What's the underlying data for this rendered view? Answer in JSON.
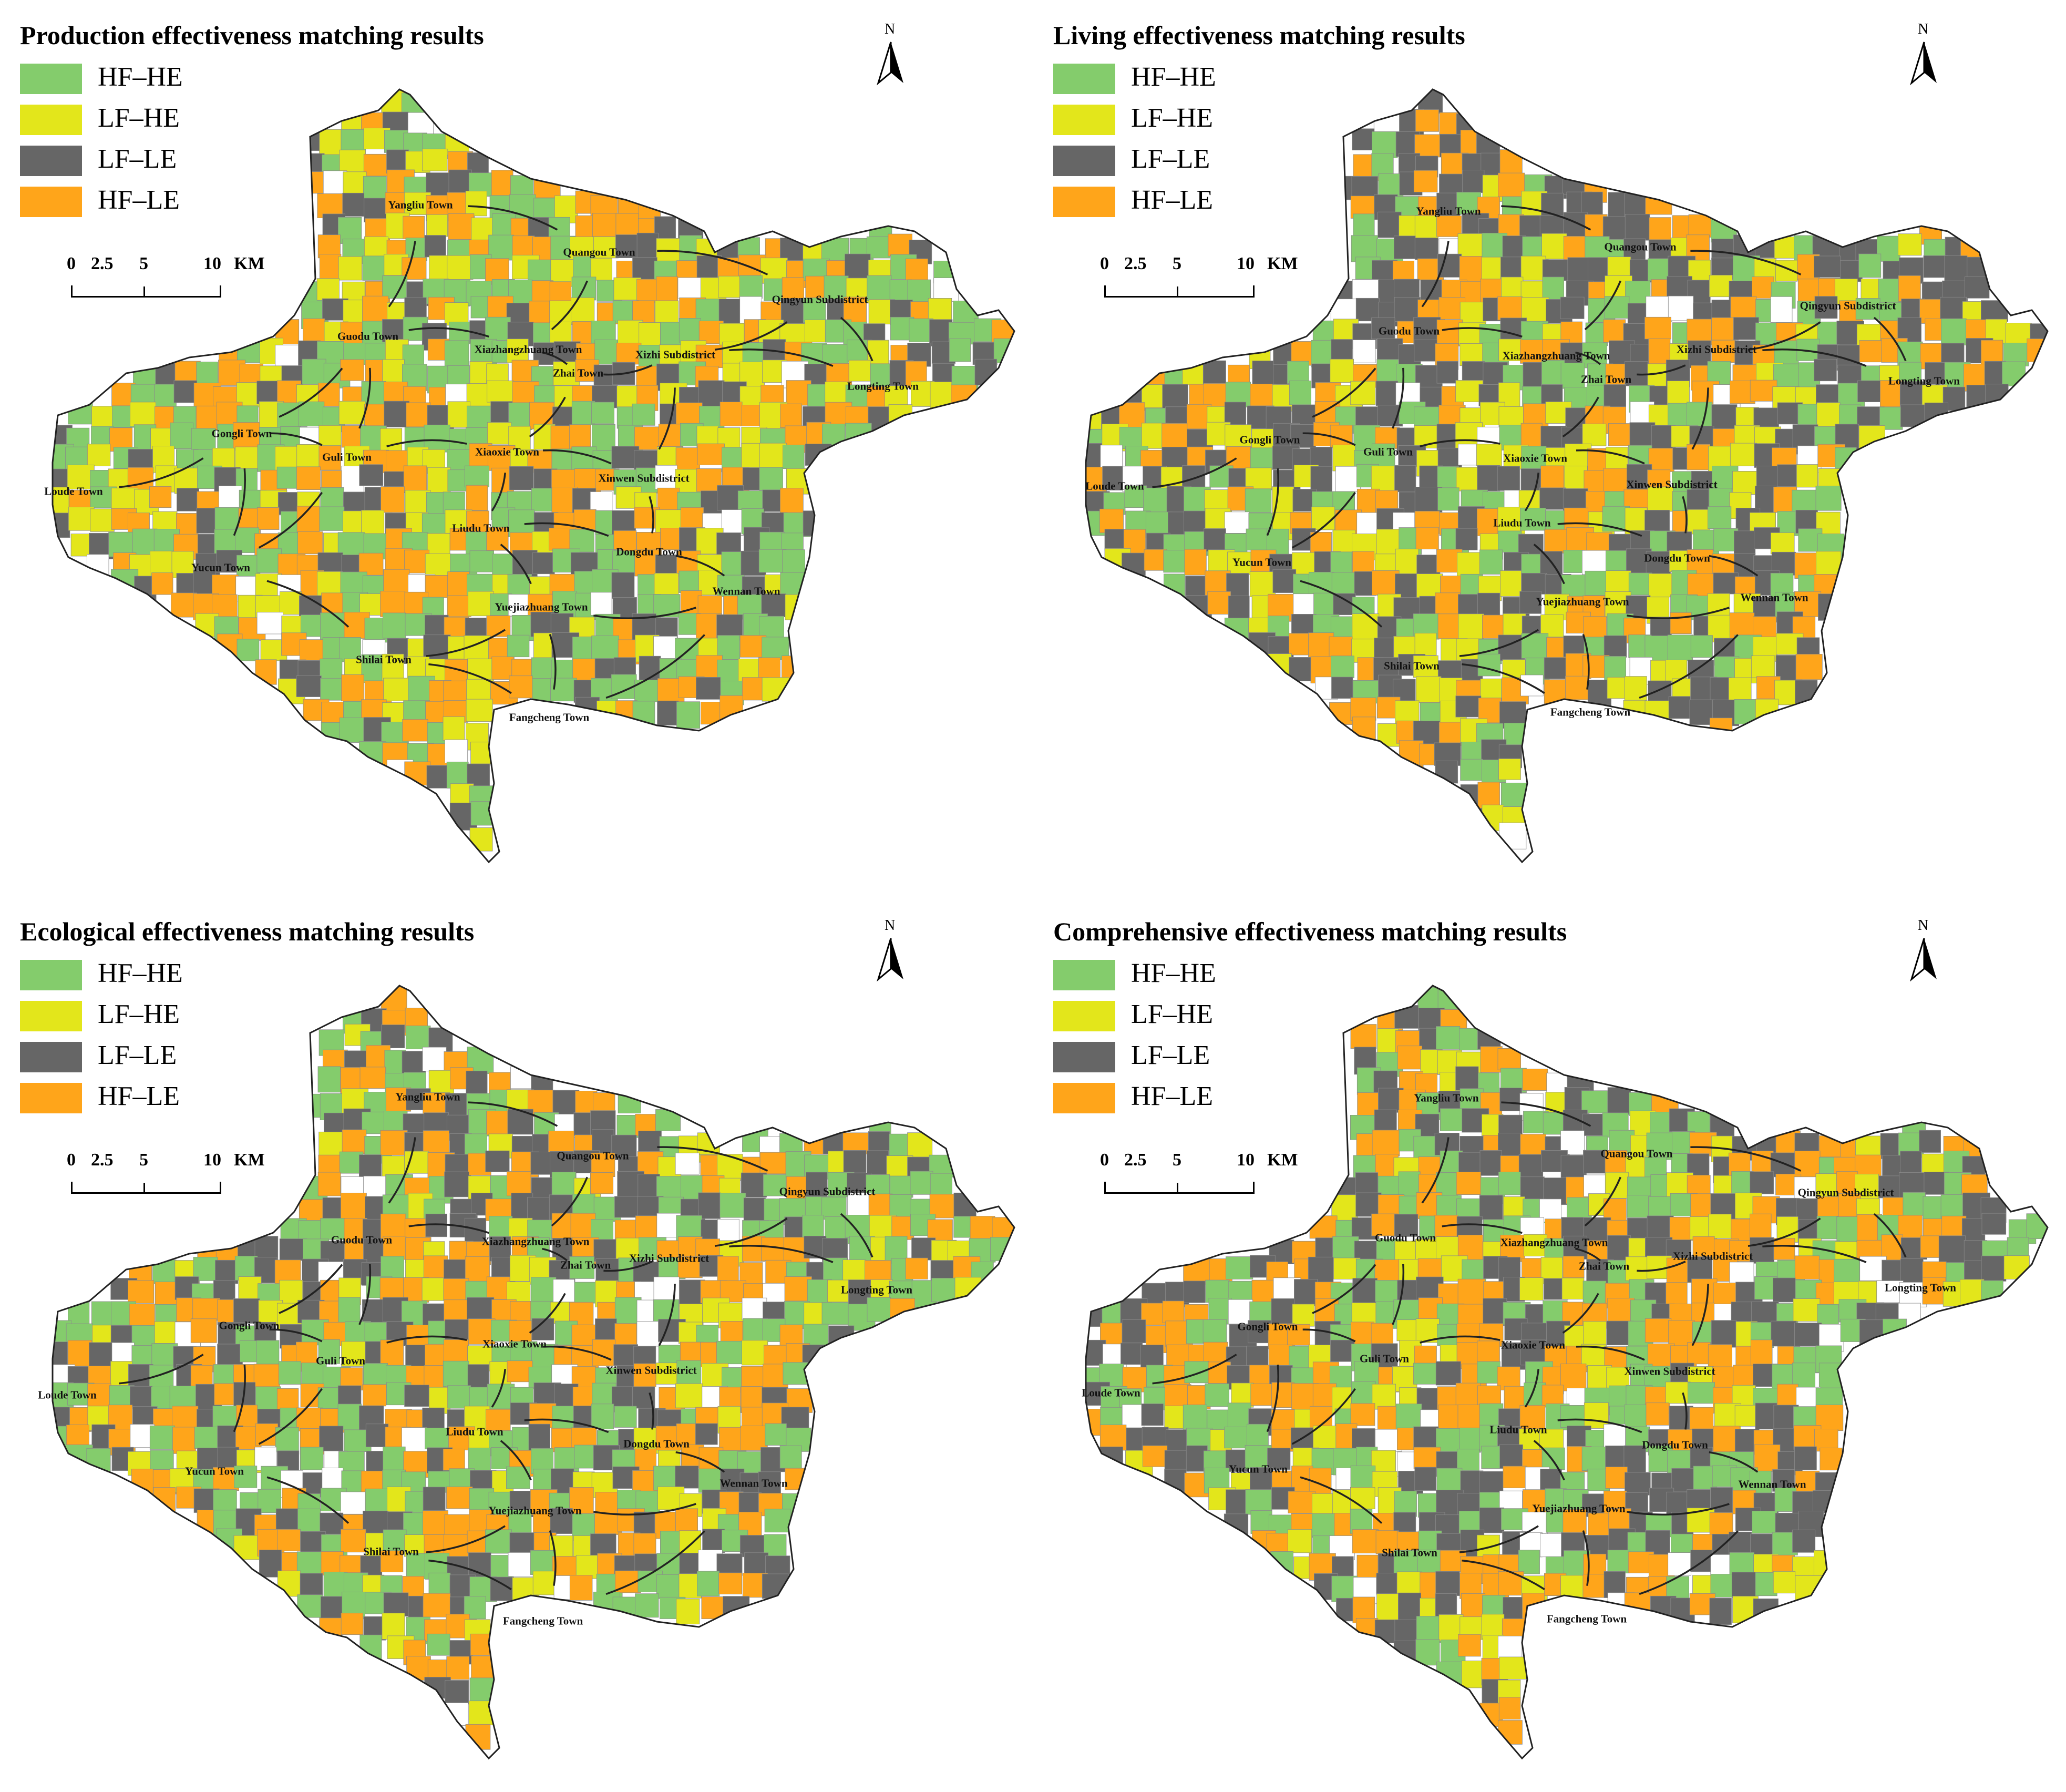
{
  "legend_items": [
    "HF–HE",
    "LF–HE",
    "LF–LE",
    "HF–LE"
  ],
  "colors": {
    "HF–HE": "#84cc6c",
    "LF–HE": "#e3e61b",
    "LF–LE": "#666666",
    "HF–LE": "#ffa51a",
    "boundary": "#222222",
    "empty": "#ffffff"
  },
  "scale": {
    "ticks": [
      "0",
      "2.5",
      "5",
      "10"
    ],
    "unit": "KM"
  },
  "north_label": "N",
  "towns": [
    "Yangliu Town",
    "Quangou Town",
    "Qingyun Subdistrict",
    "Guodu Town",
    "Xiazhangzhuang Town",
    "Xizhi Subdistrict",
    "Zhai Town",
    "Longting Town",
    "Gongli Town",
    "Guli Town",
    "Xiaoxie Town",
    "Loude Town",
    "Xinwen Subdistrict",
    "Liudu Town",
    "Dongdu Town",
    "Yucun Town",
    "Wennan Town",
    "Yuejiazhuang Town",
    "Shilai Town",
    "Fangcheng Town"
  ],
  "panels": [
    {
      "title": "Production effectiveness matching results"
    },
    {
      "title": "Living effectiveness matching results"
    },
    {
      "title": "Ecological effectiveness matching results"
    },
    {
      "title": "Comprehensive effectiveness matching results"
    }
  ]
}
